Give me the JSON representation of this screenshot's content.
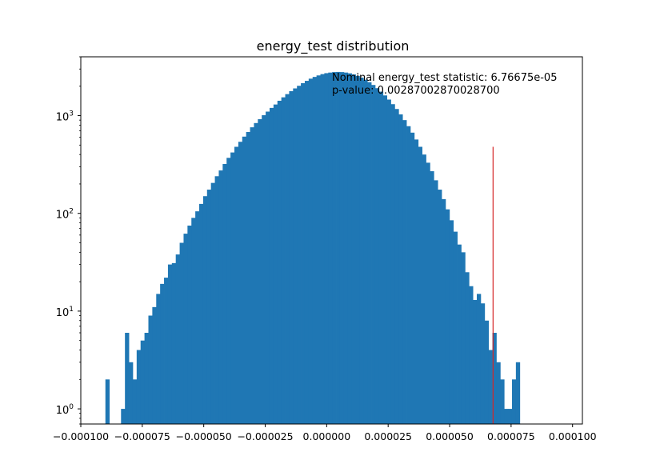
{
  "chart_data": {
    "type": "bar",
    "title": "energy_test distribution",
    "xlabel": "",
    "ylabel": "",
    "yscale": "log",
    "xlim": [
      -0.0001,
      0.000104
    ],
    "ylim": [
      0.7,
      4000
    ],
    "grid": false,
    "x_ticks": [
      "−0.000100",
      "−0.000075",
      "−0.000050",
      "−0.000025",
      "0.000000",
      "0.000025",
      "0.000050",
      "0.000075",
      "0.000100"
    ],
    "x_tick_values": [
      -0.0001,
      -7.5e-05,
      -5e-05,
      -2.5e-05,
      0,
      2.5e-05,
      5e-05,
      7.5e-05,
      0.0001
    ],
    "y_ticks": [
      {
        "base": "10",
        "exp": "0",
        "value": 1
      },
      {
        "base": "10",
        "exp": "1",
        "value": 10
      },
      {
        "base": "10",
        "exp": "2",
        "value": 100
      },
      {
        "base": "10",
        "exp": "3",
        "value": 1000
      }
    ],
    "bin_start": -9e-05,
    "bin_width": 1.59e-06,
    "values": [
      2,
      0,
      0,
      0,
      1,
      6,
      3,
      2,
      4,
      5,
      6,
      9,
      11,
      15,
      19,
      22,
      30,
      31,
      38,
      50,
      62,
      75,
      90,
      105,
      125,
      150,
      175,
      205,
      240,
      275,
      320,
      370,
      420,
      480,
      540,
      610,
      680,
      760,
      840,
      920,
      1010,
      1100,
      1200,
      1300,
      1420,
      1540,
      1660,
      1780,
      1900,
      2020,
      2150,
      2270,
      2390,
      2490,
      2580,
      2660,
      2720,
      2760,
      2790,
      2800,
      2790,
      2760,
      2710,
      2640,
      2550,
      2450,
      2330,
      2200,
      2060,
      1910,
      1760,
      1610,
      1460,
      1310,
      1170,
      1030,
      900,
      780,
      670,
      570,
      480,
      400,
      330,
      270,
      218,
      175,
      140,
      110,
      85,
      65,
      48,
      40,
      25,
      18,
      13,
      15,
      12,
      8,
      4,
      6,
      3,
      2,
      1,
      1,
      2,
      3
    ],
    "hist_color": "#1f77b4",
    "marker": {
      "x": 6.76675e-05,
      "top": 480,
      "color": "#d62728"
    },
    "annotation_lines": [
      "Nominal energy_test statistic: 6.76675e-05",
      "p-value: 0.00287002870028700"
    ]
  }
}
